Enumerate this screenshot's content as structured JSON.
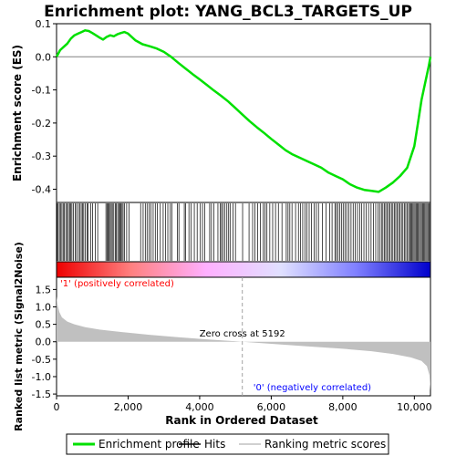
{
  "chart_data": {
    "type": "line",
    "title": "Enrichment plot: YANG_BCL3_TARGETS_UP",
    "xlabel": "Rank in Ordered Dataset",
    "es_panel": {
      "ylabel": "Enrichment score (ES)",
      "ylim": [
        -0.44,
        0.1
      ],
      "yticks": [
        0.1,
        0.0,
        -0.1,
        -0.2,
        -0.3,
        -0.4
      ],
      "ytick_labels": [
        "0.1",
        "0.0",
        "-0.1",
        "-0.2",
        "-0.3",
        "-0.4"
      ],
      "line_color": "#00e000",
      "series": {
        "name": "Enrichment profile",
        "x": [
          0,
          100,
          200,
          300,
          400,
          500,
          600,
          700,
          800,
          900,
          1000,
          1100,
          1200,
          1300,
          1400,
          1500,
          1600,
          1700,
          1800,
          1900,
          2000,
          2200,
          2400,
          2600,
          2800,
          3000,
          3200,
          3400,
          3600,
          3800,
          4000,
          4200,
          4400,
          4600,
          4800,
          5000,
          5200,
          5400,
          5600,
          5800,
          6000,
          6200,
          6400,
          6600,
          6800,
          7000,
          7200,
          7400,
          7600,
          7800,
          8000,
          8200,
          8400,
          8600,
          8800,
          9000,
          9200,
          9400,
          9600,
          9800,
          10000,
          10100,
          10200,
          10300,
          10400,
          10450
        ],
        "y": [
          0.0,
          0.02,
          0.03,
          0.04,
          0.055,
          0.065,
          0.07,
          0.075,
          0.08,
          0.078,
          0.072,
          0.065,
          0.058,
          0.052,
          0.06,
          0.065,
          0.062,
          0.068,
          0.072,
          0.075,
          0.07,
          0.05,
          0.038,
          0.032,
          0.025,
          0.015,
          0.0,
          -0.018,
          -0.035,
          -0.052,
          -0.068,
          -0.085,
          -0.102,
          -0.118,
          -0.135,
          -0.155,
          -0.175,
          -0.195,
          -0.213,
          -0.23,
          -0.248,
          -0.265,
          -0.282,
          -0.295,
          -0.305,
          -0.315,
          -0.325,
          -0.335,
          -0.35,
          -0.36,
          -0.37,
          -0.385,
          -0.395,
          -0.402,
          -0.405,
          -0.408,
          -0.395,
          -0.38,
          -0.36,
          -0.335,
          -0.27,
          -0.2,
          -0.13,
          -0.08,
          -0.03,
          0.0
        ]
      }
    },
    "hits_panel": {
      "name": "Hits",
      "hit_ranks": [
        15,
        45,
        80,
        110,
        150,
        185,
        220,
        260,
        300,
        330,
        370,
        400,
        430,
        470,
        520,
        560,
        610,
        650,
        690,
        730,
        760,
        800,
        850,
        880,
        960,
        1010,
        1080,
        1150,
        1380,
        1410,
        1440,
        1470,
        1500,
        1530,
        1560,
        1600,
        1640,
        1670,
        1710,
        1740,
        1770,
        1800,
        1830,
        1860,
        1900,
        1960,
        2030,
        2350,
        2420,
        2480,
        2530,
        2590,
        2640,
        2700,
        2760,
        2820,
        2900,
        2980,
        3050,
        3110,
        3180,
        3220,
        3380,
        3420,
        3570,
        3610,
        3700,
        3760,
        3850,
        3930,
        4020,
        4080,
        4140,
        4280,
        4330,
        4400,
        4510,
        4580,
        4610,
        4650,
        4700,
        4760,
        4810,
        4850,
        4930,
        5000,
        5200,
        5380,
        5480,
        5540,
        5620,
        5700,
        5780,
        5830,
        5880,
        5960,
        6040,
        6120,
        6200,
        6300,
        6420,
        6470,
        6520,
        6580,
        6680,
        6760,
        6820,
        6880,
        6940,
        7000,
        7060,
        7120,
        7200,
        7260,
        7320,
        7430,
        7530,
        7630,
        7700,
        7780,
        7820,
        7860,
        7910,
        7960,
        8010,
        8060,
        8110,
        8170,
        8230,
        8290,
        8350,
        8410,
        8470,
        8530,
        8590,
        8650,
        8720,
        8790,
        8860,
        8920,
        8980,
        9030,
        9080,
        9120,
        9160,
        9200,
        9240,
        9280,
        9320,
        9360,
        9400,
        9440,
        9480,
        9520,
        9560,
        9600,
        9640,
        9680,
        9720,
        9760,
        9800,
        9840,
        9870,
        9900,
        9930,
        9960,
        9990,
        10020,
        10050,
        10080,
        10110,
        10140,
        10170,
        10200,
        10230,
        10260,
        10290,
        10320,
        10350,
        10380,
        10410,
        10440
      ]
    },
    "color_bar": {
      "stops": [
        "#ee0000",
        "#ff8080",
        "#ffb0ff",
        "#e0e0ff",
        "#8080ff",
        "#0000cc"
      ]
    },
    "metric_panel": {
      "name": "Ranking metric scores",
      "ylabel": "Ranked list metric (Signal2Noise)",
      "ylim": [
        -1.55,
        1.85
      ],
      "yticks": [
        1.5,
        1.0,
        0.5,
        0.0,
        -0.5,
        -1.0,
        -1.5
      ],
      "ytick_labels": [
        "1.5",
        "1.0",
        "0.5",
        "0.0",
        "-0.5",
        "-1.0",
        "-1.5"
      ],
      "fill_color": "#c0c0c0",
      "x": [
        0,
        30,
        80,
        150,
        300,
        500,
        800,
        1200,
        1800,
        2600,
        3400,
        4200,
        5192,
        6000,
        7000,
        8000,
        8800,
        9400,
        9900,
        10200,
        10350,
        10420,
        10450
      ],
      "y": [
        1.3,
        1.05,
        0.85,
        0.7,
        0.58,
        0.5,
        0.42,
        0.35,
        0.28,
        0.2,
        0.13,
        0.07,
        0.0,
        -0.06,
        -0.13,
        -0.2,
        -0.27,
        -0.35,
        -0.45,
        -0.55,
        -0.7,
        -0.95,
        -1.4
      ],
      "zero_cross_rank": 5192,
      "zero_cross_label": "Zero cross at 5192",
      "positive_label": "'1' (positively correlated)",
      "negative_label": "'0' (negatively correlated)",
      "positive_color": "#ff0000",
      "negative_color": "#0000ff"
    },
    "x_axis": {
      "xlim": [
        0,
        10450
      ],
      "xticks": [
        0,
        2000,
        4000,
        6000,
        8000,
        10000
      ],
      "xtick_labels": [
        "0",
        "2,000",
        "4,000",
        "6,000",
        "8,000",
        "10,000"
      ]
    },
    "legend": {
      "placement": "bottom",
      "entries": [
        {
          "label": "Enrichment profile",
          "color": "#00e000"
        },
        {
          "label": "Hits",
          "color": "#000000"
        },
        {
          "label": "Ranking metric scores",
          "color": "#c0c0c0"
        }
      ]
    }
  }
}
